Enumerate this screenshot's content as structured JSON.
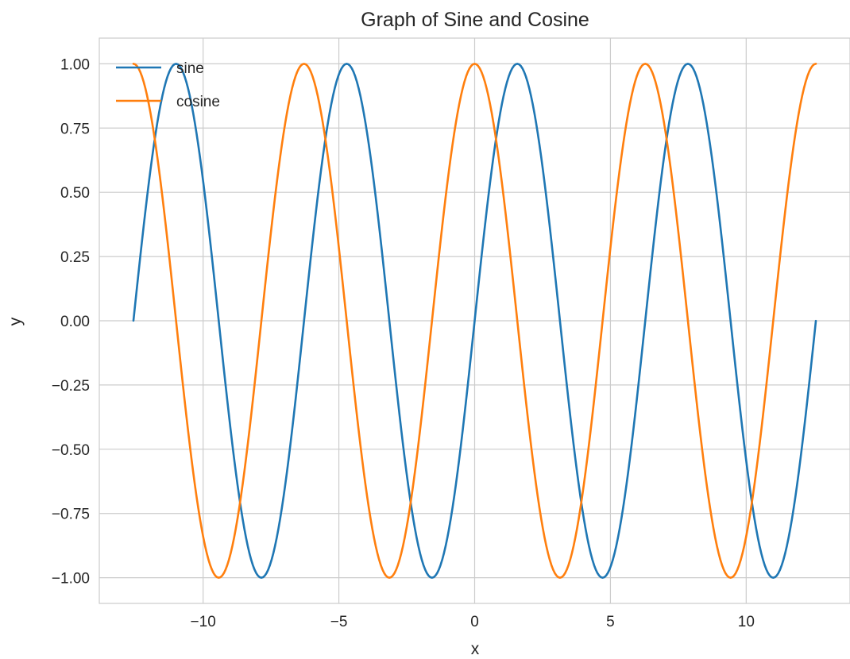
{
  "chart_data": {
    "type": "line",
    "title": "Graph of Sine and Cosine",
    "xlabel": "x",
    "ylabel": "y",
    "xlim": [
      -13.823,
      13.823
    ],
    "ylim": [
      -1.1,
      1.1
    ],
    "xticks": [
      -10,
      -5,
      0,
      5,
      10
    ],
    "xtick_labels": [
      "−10",
      "−5",
      "0",
      "5",
      "10"
    ],
    "yticks": [
      1.0,
      0.75,
      0.5,
      0.25,
      0.0,
      -0.25,
      -0.5,
      -0.75,
      -1.0
    ],
    "ytick_labels": [
      "1.00",
      "0.75",
      "0.50",
      "0.25",
      "0.00",
      "−0.25",
      "−0.50",
      "−0.75",
      "−1.00"
    ],
    "grid": true,
    "legend": "top-left",
    "x_range": [
      -12.566,
      12.566
    ],
    "series": [
      {
        "name": "sine",
        "function": "sin(x)",
        "color": "#1f77b4"
      },
      {
        "name": "cosine",
        "function": "cos(x)",
        "color": "#ff7f0e"
      }
    ]
  }
}
